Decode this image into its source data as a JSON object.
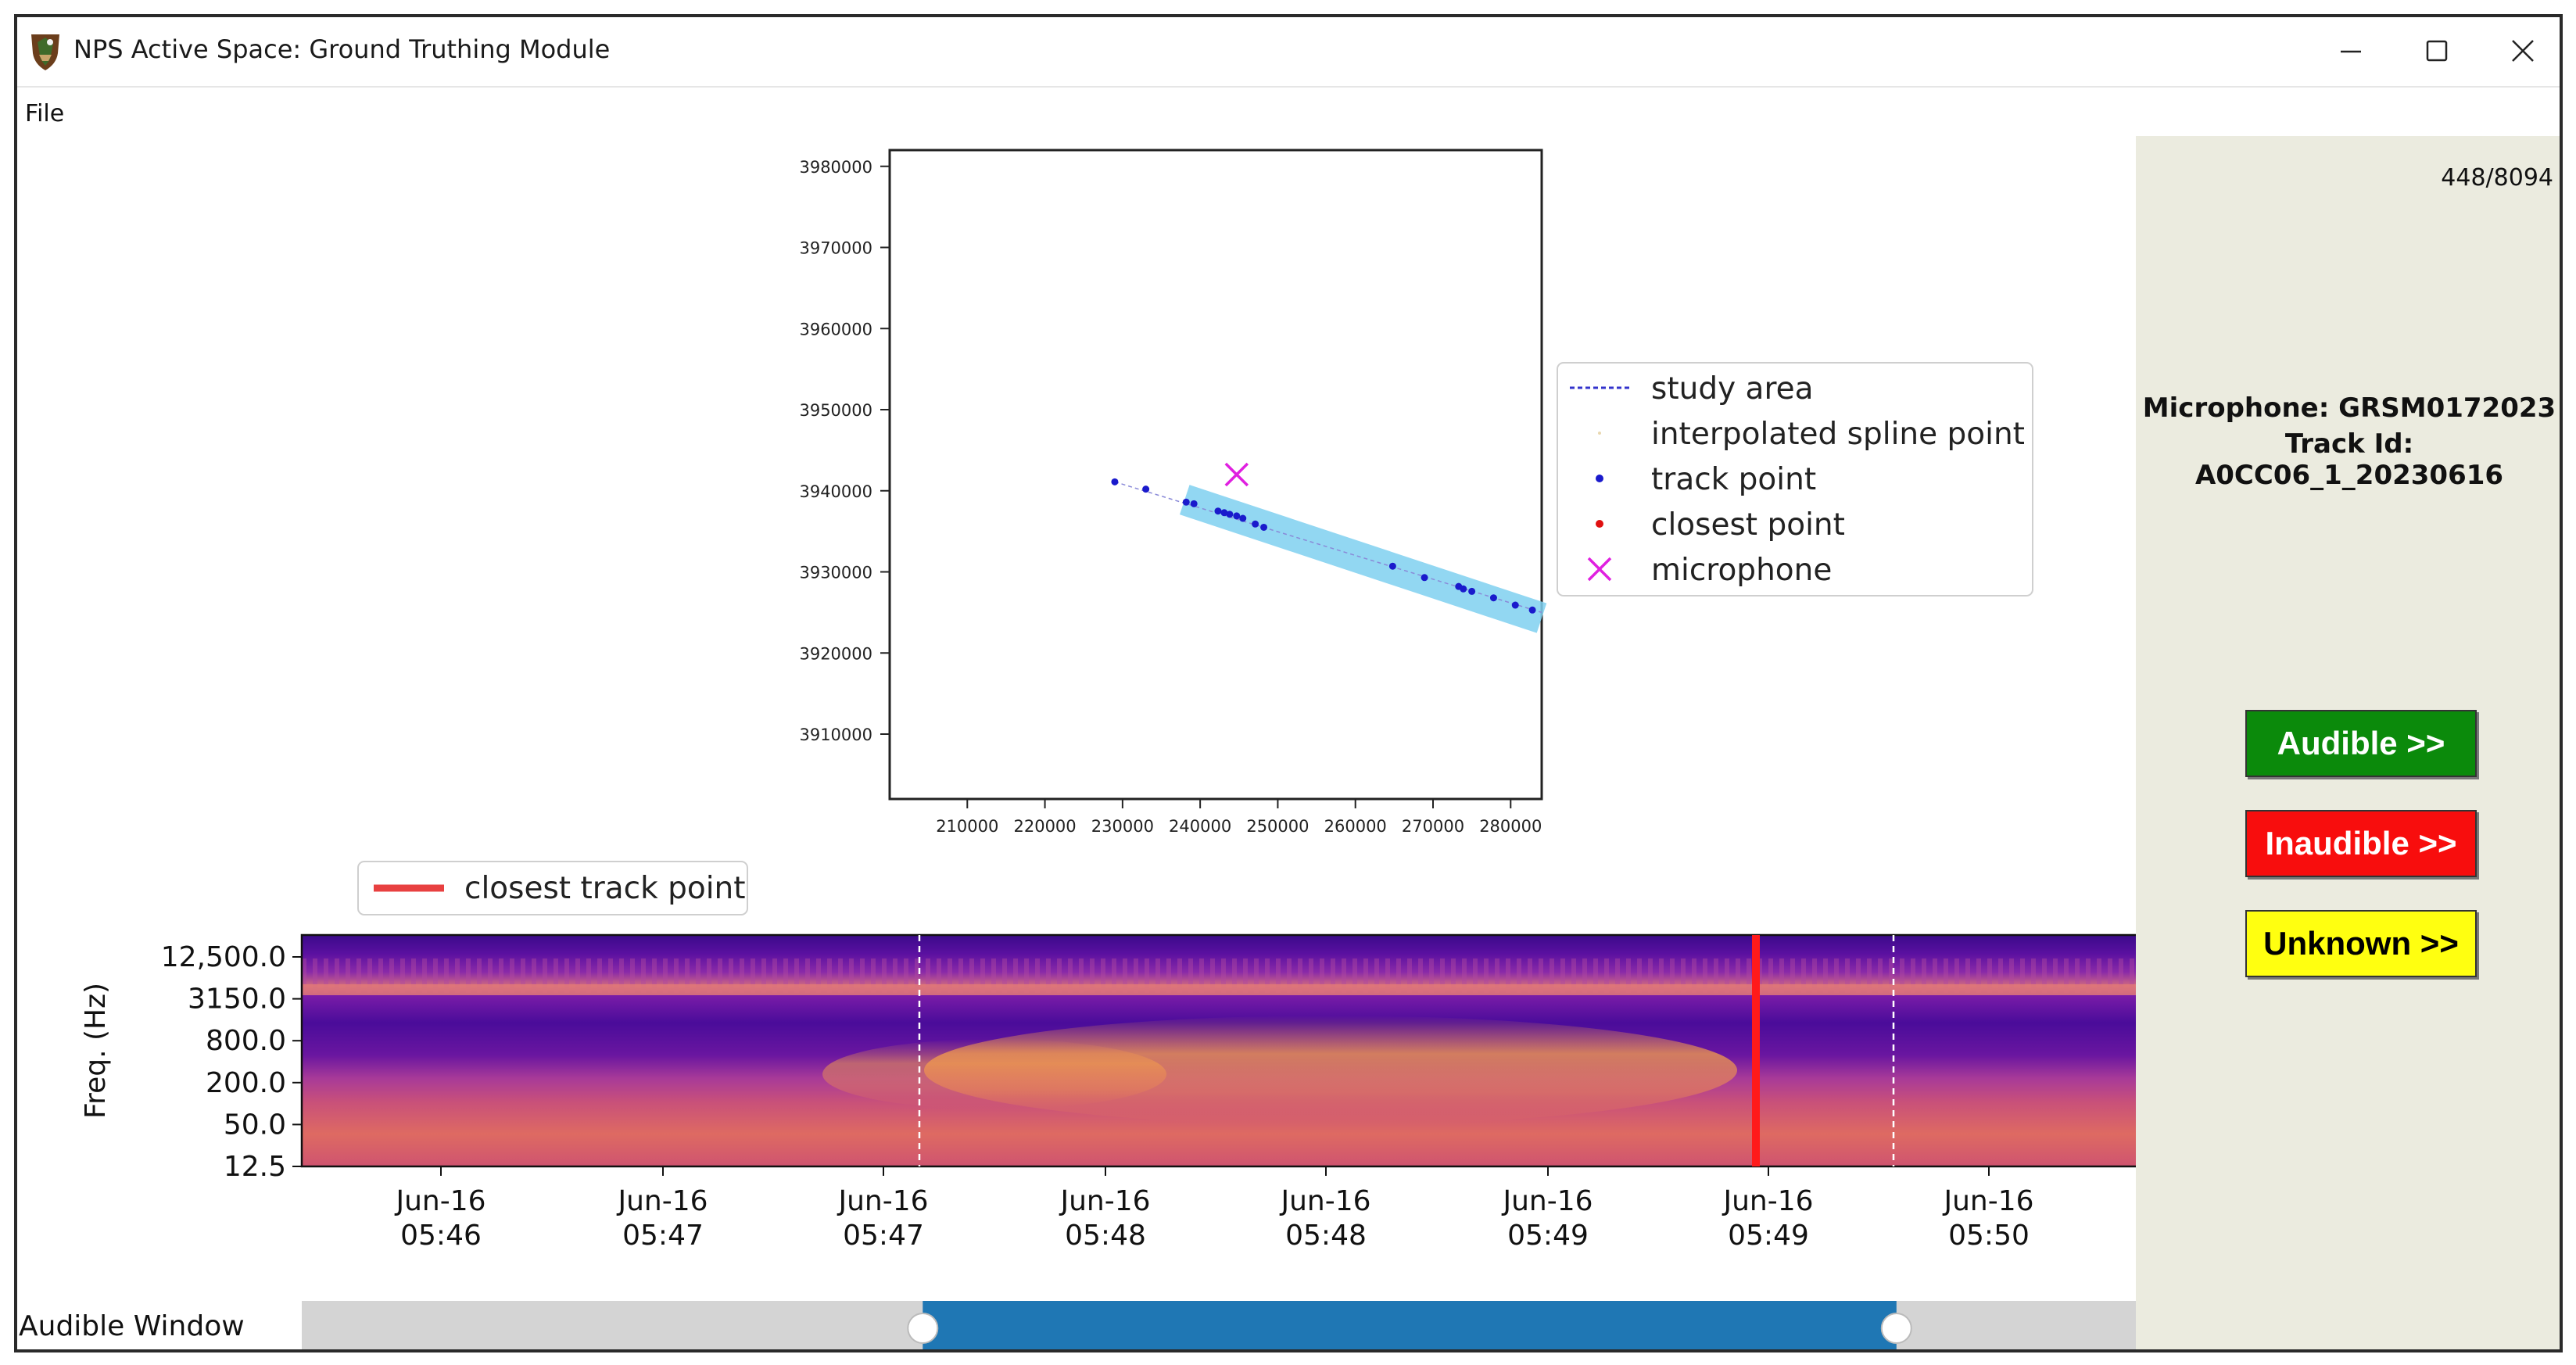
{
  "window": {
    "title": "NPS Active Space: Ground Truthing Module",
    "controls": [
      "minimize-icon",
      "maximize-icon",
      "close-icon"
    ]
  },
  "menu": {
    "file_label": "File"
  },
  "sidebar": {
    "counter": "448/8094",
    "microphone": "Microphone: GRSM0172023",
    "track_id": "Track Id: A0CC06_1_20230616",
    "buttons": {
      "audible": "Audible >>",
      "inaudible": "Inaudible >>",
      "unknown": "Unknown >>"
    },
    "colors": {
      "audible": "#0b8a0b",
      "inaudible": "#f80d0d",
      "unknown": "#ffff10"
    }
  },
  "map_legend": {
    "items": [
      {
        "label": "study area",
        "marker": "dashed-line",
        "color": "#3333cc"
      },
      {
        "label": "interpolated spline point",
        "marker": "tiny-dot",
        "color": "#e8d8b0"
      },
      {
        "label": "track point",
        "marker": "dot",
        "color": "#1a1acc"
      },
      {
        "label": "closest point",
        "marker": "dot",
        "color": "#e01010"
      },
      {
        "label": "microphone",
        "marker": "x",
        "color": "#e020e0"
      }
    ]
  },
  "spectrogram": {
    "ylabel": "Freq. (Hz)",
    "legend_label": "closest track point",
    "legend_color": "#e84040",
    "yticks": [
      "12,500.0",
      "3150.0",
      "800.0",
      "200.0",
      "50.0",
      "12.5"
    ],
    "xticks": [
      {
        "date": "Jun-16",
        "time": "05:46"
      },
      {
        "date": "Jun-16",
        "time": "05:47"
      },
      {
        "date": "Jun-16",
        "time": "05:47"
      },
      {
        "date": "Jun-16",
        "time": "05:48"
      },
      {
        "date": "Jun-16",
        "time": "05:48"
      },
      {
        "date": "Jun-16",
        "time": "05:49"
      },
      {
        "date": "Jun-16",
        "time": "05:49"
      },
      {
        "date": "Jun-16",
        "time": "05:50"
      }
    ]
  },
  "audible_window": {
    "label": "Audible Window",
    "start": 0.338,
    "end": 0.868,
    "fill_color": "#1f77b4"
  },
  "chart_data": {
    "type": "scatter",
    "xlim": [
      200000,
      284000
    ],
    "ylim": [
      3902000,
      3982000
    ],
    "xticks": [
      210000,
      220000,
      230000,
      240000,
      250000,
      260000,
      270000,
      280000
    ],
    "yticks": [
      3910000,
      3920000,
      3930000,
      3940000,
      3950000,
      3960000,
      3970000,
      3980000
    ],
    "legend": "right",
    "series": [
      {
        "name": "track point",
        "x": [
          229000,
          233000,
          238200,
          239200,
          242300,
          243100,
          243800,
          244700,
          245500,
          247100,
          248200,
          264800,
          268900,
          273300,
          273900,
          275000,
          277800,
          280600,
          282800
        ],
        "y": [
          3941100,
          3940200,
          3938600,
          3938400,
          3937500,
          3937300,
          3937100,
          3936900,
          3936600,
          3935900,
          3935500,
          3930700,
          3929300,
          3928200,
          3927900,
          3927600,
          3926800,
          3925900,
          3925300
        ]
      },
      {
        "name": "microphone",
        "x": [
          244700
        ],
        "y": [
          3942000
        ]
      }
    ],
    "study_area_band": {
      "x": [
        238000,
        284000
      ],
      "y": [
        3938900,
        3924300
      ]
    },
    "track_line": {
      "x": [
        229000,
        284000
      ],
      "y": [
        3941100,
        3925000
      ]
    }
  }
}
